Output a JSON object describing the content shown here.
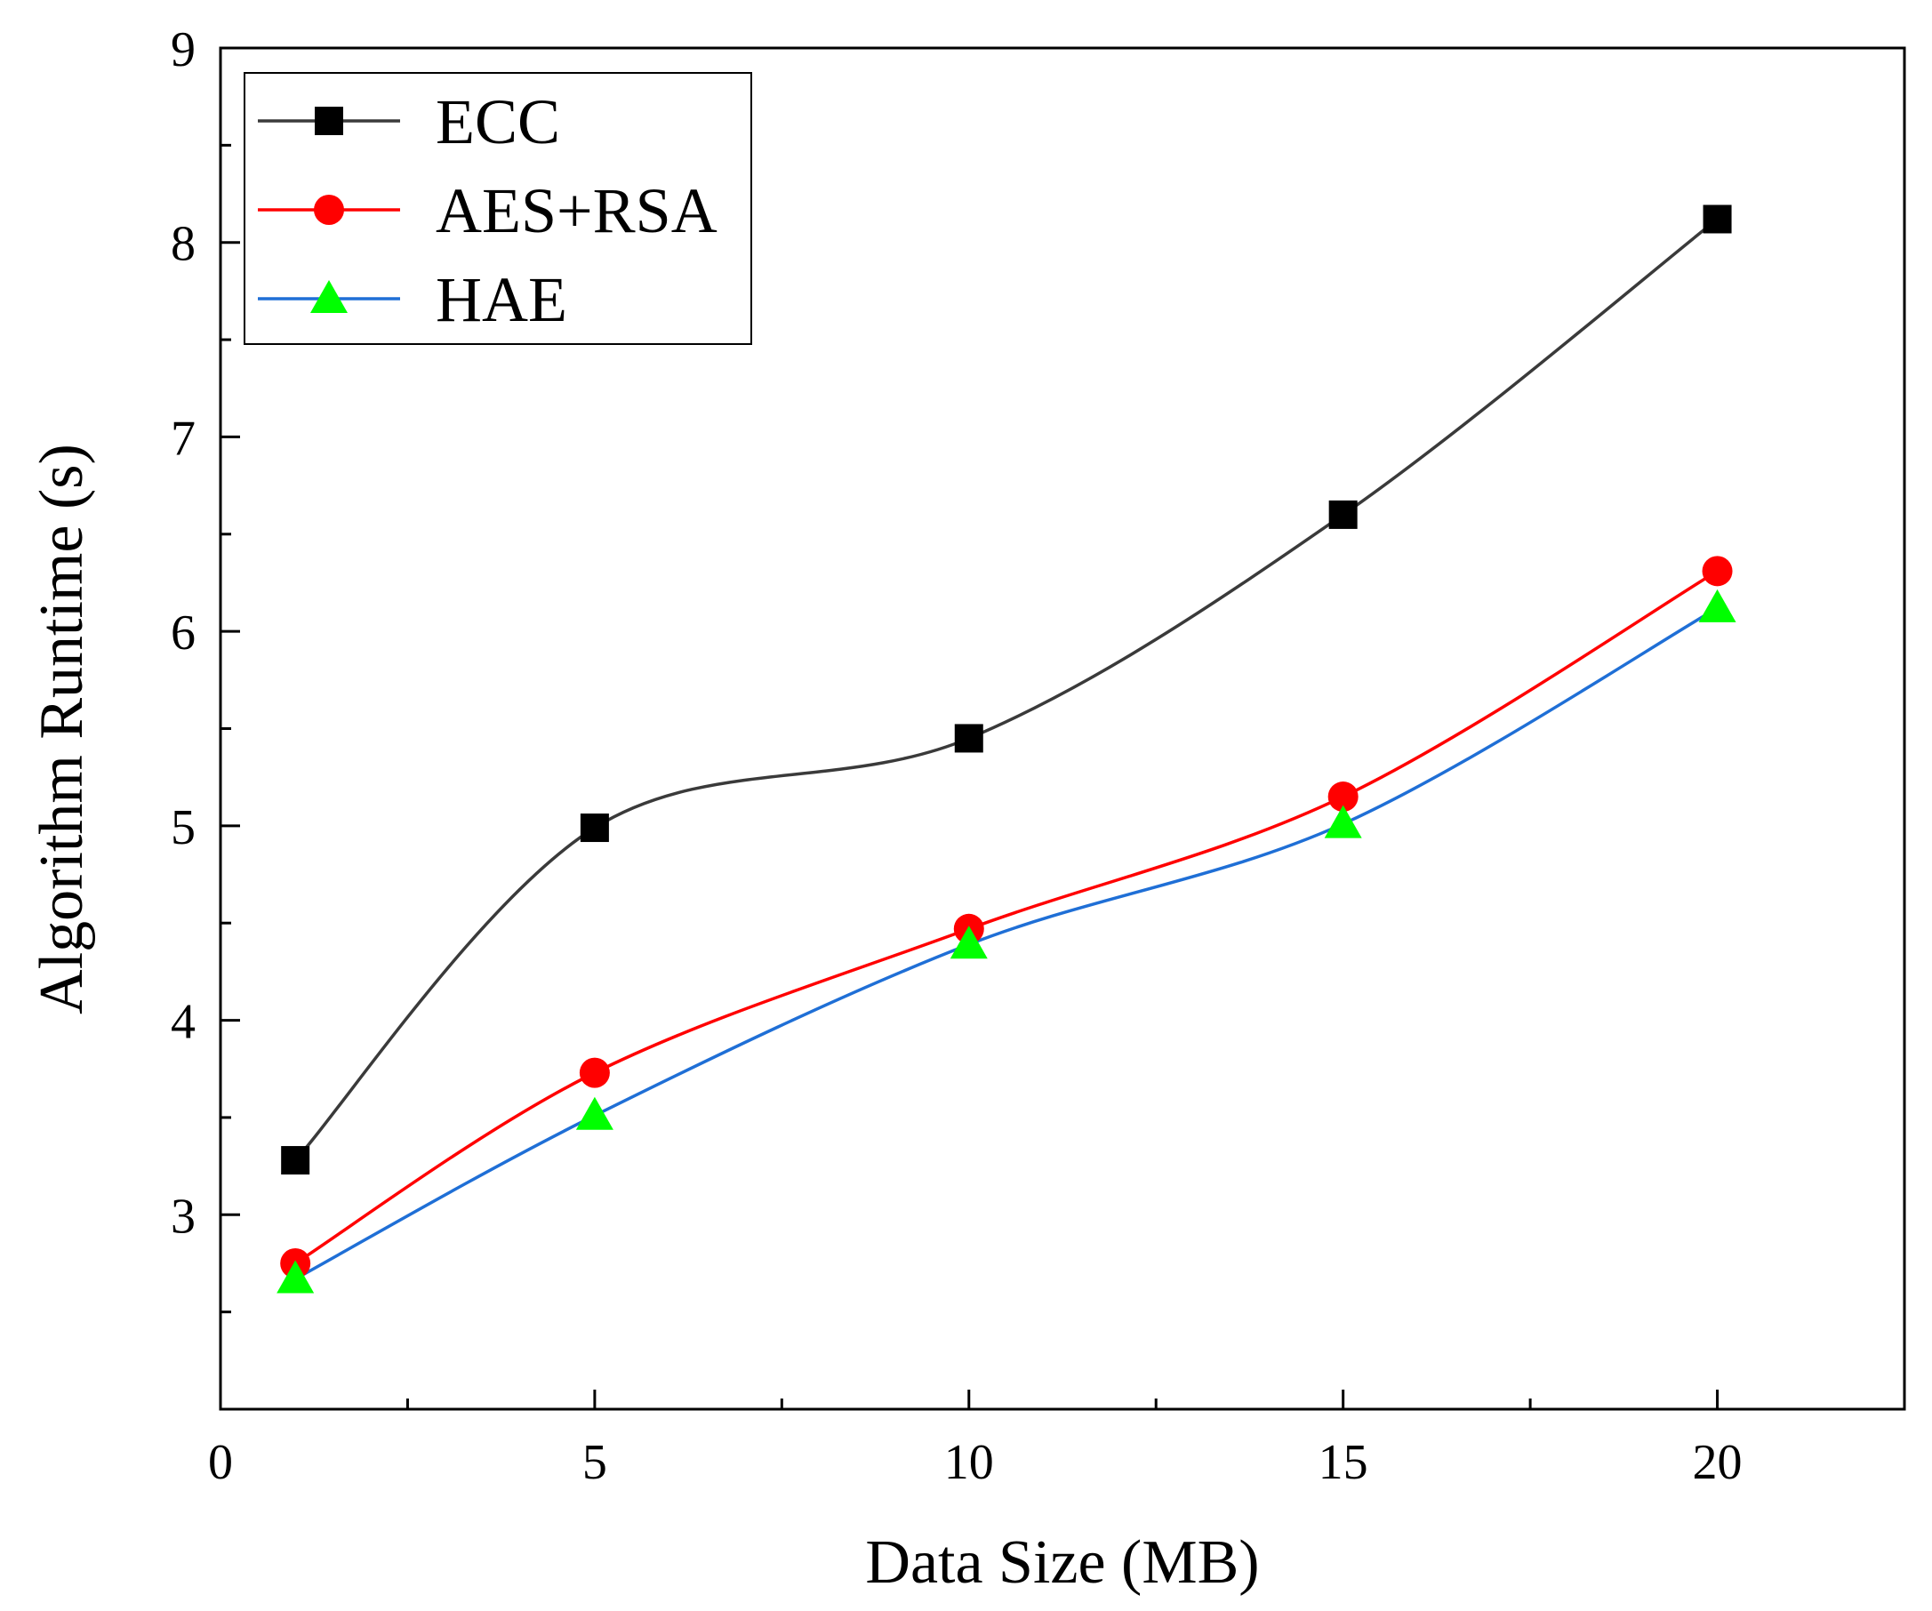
{
  "chart_data": {
    "type": "line",
    "title": "",
    "xlabel": "Data Size (MB)",
    "ylabel": "Algorithm Runtime (s)",
    "xlim": [
      0,
      22.5
    ],
    "ylim": [
      2,
      9
    ],
    "x_ticks": [
      0,
      5,
      10,
      15,
      20
    ],
    "x_tick_labels": [
      "0",
      "5",
      "10",
      "15",
      "20"
    ],
    "x_minor_ticks": [
      2.5,
      7.5,
      12.5,
      17.5
    ],
    "y_ticks": [
      3,
      4,
      5,
      6,
      7,
      8,
      9
    ],
    "y_tick_labels": [
      "3",
      "4",
      "5",
      "6",
      "7",
      "8",
      "9"
    ],
    "y_minor_ticks": [
      2.5,
      3.5,
      4.5,
      5.5,
      6.5,
      7.5,
      8.5
    ],
    "x": [
      1,
      5,
      10,
      15,
      20
    ],
    "series": [
      {
        "name": "ECC",
        "values": [
          3.28,
          4.99,
          5.45,
          6.6,
          8.12
        ],
        "color": "#3a3a3a",
        "marker": "square",
        "marker_color": "#000000"
      },
      {
        "name": "AES+RSA",
        "values": [
          2.75,
          3.73,
          4.47,
          5.15,
          6.31
        ],
        "color": "#ff0000",
        "marker": "circle",
        "marker_color": "#ff0000"
      },
      {
        "name": "HAE",
        "values": [
          2.67,
          3.51,
          4.39,
          5.01,
          6.12
        ],
        "color": "#1f6fd6",
        "marker": "triangle",
        "marker_color": "#00ff00"
      }
    ],
    "legend_position": "top-left",
    "grid": false
  }
}
